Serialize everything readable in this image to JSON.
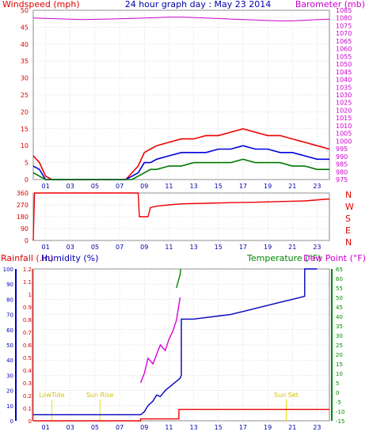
{
  "header": {
    "left_label": "Windspeed (mph)",
    "title": "24 hour graph day : May 23 2014",
    "right_label": "Barometer (mb)"
  },
  "colors": {
    "wind_gust": "#ee0000",
    "wind_avg": "#0000dd",
    "wind_low": "#007700",
    "barometer": "#cc00cc",
    "rainfall": "#ee0000",
    "humidity": "#0000bb",
    "temperature": "#008800",
    "dew_point": "#dd00dd",
    "events": "#e6e000",
    "grid": "#bbbbbb",
    "panel_bg": "#ffffff"
  },
  "hour_ticks": [
    "01",
    "03",
    "05",
    "07",
    "09",
    "11",
    "13",
    "15",
    "17",
    "19",
    "21",
    "23"
  ],
  "chart_data": [
    {
      "id": "wind",
      "type": "line",
      "title": "24 hour graph day : May 23 2014",
      "x_range": [
        0,
        24
      ],
      "y_left": {
        "label": "Windspeed (mph)",
        "range": [
          0,
          50
        ],
        "ticks": [
          0,
          5,
          10,
          15,
          20,
          25,
          30,
          35,
          40,
          45,
          50
        ]
      },
      "y_right": {
        "label": "Barometer (mb)",
        "range": [
          975,
          1085
        ],
        "ticks": [
          975,
          980,
          985,
          990,
          995,
          1000,
          1005,
          1010,
          1015,
          1020,
          1025,
          1030,
          1035,
          1040,
          1045,
          1050,
          1055,
          1060,
          1065,
          1070,
          1075,
          1080,
          1085
        ]
      },
      "series": [
        {
          "key": "gust",
          "axis": "left",
          "color_key": "wind_gust",
          "x": [
            0,
            0.5,
            1,
            1.5,
            7.5,
            8,
            8.5,
            9,
            9.5,
            10,
            11,
            12,
            13,
            14,
            15,
            16,
            17,
            18,
            19,
            20,
            21,
            22,
            23,
            24
          ],
          "values": [
            7,
            5,
            1,
            0,
            0,
            2,
            4,
            8,
            9,
            10,
            11,
            12,
            12,
            13,
            13,
            14,
            15,
            14,
            13,
            13,
            12,
            11,
            10,
            9
          ]
        },
        {
          "key": "average",
          "axis": "left",
          "color_key": "wind_avg",
          "x": [
            0,
            0.5,
            1,
            1.5,
            7.5,
            8,
            8.5,
            9,
            9.5,
            10,
            11,
            12,
            13,
            14,
            15,
            16,
            17,
            18,
            19,
            20,
            21,
            22,
            23,
            24
          ],
          "values": [
            4,
            3,
            0,
            0,
            0,
            1,
            2,
            5,
            5,
            6,
            7,
            8,
            8,
            8,
            9,
            9,
            10,
            9,
            9,
            8,
            8,
            7,
            6,
            6
          ]
        },
        {
          "key": "low",
          "axis": "left",
          "color_key": "wind_low",
          "x": [
            0,
            0.5,
            1,
            1.5,
            7.5,
            8,
            8.5,
            9,
            9.5,
            10,
            11,
            12,
            13,
            14,
            15,
            16,
            17,
            18,
            19,
            20,
            21,
            22,
            23,
            24
          ],
          "values": [
            2,
            1,
            0,
            0,
            0,
            0,
            1,
            2,
            3,
            3,
            4,
            4,
            5,
            5,
            5,
            5,
            6,
            5,
            5,
            5,
            4,
            4,
            3,
            3
          ]
        },
        {
          "key": "barometer",
          "axis": "right",
          "color_key": "barometer",
          "x": [
            0,
            2,
            4,
            6,
            8,
            10,
            11,
            12,
            14,
            16,
            18,
            19,
            20,
            21,
            22,
            23,
            24
          ],
          "values": [
            1080,
            1079.5,
            1079,
            1079.3,
            1079.7,
            1080.2,
            1080.6,
            1080.6,
            1080,
            1079.3,
            1078.7,
            1078.3,
            1078.1,
            1078.1,
            1078.5,
            1079,
            1079.2
          ]
        }
      ]
    },
    {
      "id": "direction",
      "type": "line",
      "x_range": [
        0,
        24
      ],
      "y_left": {
        "range": [
          0,
          360
        ],
        "ticks": [
          0,
          90,
          180,
          270,
          360
        ]
      },
      "y_right_labels": [
        "N",
        "W",
        "S",
        "E",
        "N"
      ],
      "series": [
        {
          "key": "direction",
          "color_key": "wind_gust",
          "x": [
            0,
            0.1,
            0.2,
            8.5,
            8.6,
            9.3,
            9.5,
            10,
            11,
            12,
            14,
            16,
            18,
            20,
            22,
            24
          ],
          "values": [
            0,
            360,
            360,
            360,
            180,
            180,
            250,
            260,
            270,
            278,
            282,
            287,
            290,
            295,
            300,
            315
          ]
        }
      ]
    },
    {
      "id": "atmos",
      "type": "line",
      "x_range": [
        0,
        24
      ],
      "legend": [
        "Rainfall (.in)",
        "Humidity (%)",
        "Temperature (°F)",
        "Dew Point (°F)"
      ],
      "y_rain": {
        "label": "Rainfall (.in)",
        "range": [
          0,
          1.2
        ],
        "ticks": [
          "0",
          "0.1",
          "0.2",
          "0.3",
          "0.4",
          "0.5",
          "0.6",
          "0.7",
          "0.8",
          "0.9",
          "1",
          "1.1",
          "1.2"
        ]
      },
      "y_humidity": {
        "label": "Humidity (%)",
        "range": [
          0,
          100
        ],
        "ticks": [
          0,
          10,
          20,
          30,
          40,
          50,
          60,
          70,
          80,
          90,
          100
        ]
      },
      "y_temp": {
        "label": "Temperature (°F)",
        "range": [
          -15,
          65
        ],
        "ticks": [
          -15,
          -10,
          -5,
          0,
          5,
          10,
          15,
          20,
          25,
          30,
          35,
          40,
          45,
          50,
          55,
          60,
          65
        ]
      },
      "events": [
        {
          "label": "LowTide",
          "hour": 1.5
        },
        {
          "label": "Sun Rise",
          "hour": 5.4
        },
        {
          "label": "Sun Set",
          "hour": 20.5
        }
      ],
      "series": [
        {
          "key": "rainfall",
          "axis": "rain",
          "color_key": "rainfall",
          "x": [
            0,
            8.7,
            8.7,
            11.8,
            11.8,
            24
          ],
          "values": [
            0,
            0,
            0.015,
            0.015,
            0.09,
            0.09
          ]
        },
        {
          "key": "humidity",
          "axis": "humidity",
          "color_key": "humidity",
          "x": [
            0,
            8.7,
            9,
            9.3,
            9.7,
            10,
            10.3,
            10.7,
            11,
            11.3,
            11.6,
            11.9,
            12,
            12,
            13,
            14,
            15,
            16,
            17,
            18,
            19,
            20,
            21,
            22,
            22,
            22.7,
            23
          ],
          "values": [
            4,
            4,
            6,
            10,
            13,
            17,
            16,
            20,
            22,
            24,
            26,
            28,
            30,
            67,
            67,
            68,
            69,
            70,
            72,
            74,
            76,
            78,
            80,
            82,
            100,
            100,
            100
          ]
        },
        {
          "key": "dew_point",
          "axis": "temp",
          "color_key": "dew_point",
          "x": [
            8.7,
            9,
            9.3,
            9.7,
            10,
            10.3,
            10.7,
            11,
            11.3,
            11.6,
            11.9
          ],
          "values": [
            5,
            10,
            18,
            15,
            20,
            25,
            22,
            28,
            32,
            38,
            50
          ]
        },
        {
          "key": "temperature",
          "axis": "temp",
          "color_key": "temperature",
          "x": [
            11.6,
            11.9,
            11.95
          ],
          "values": [
            55,
            62,
            65
          ]
        }
      ]
    }
  ]
}
